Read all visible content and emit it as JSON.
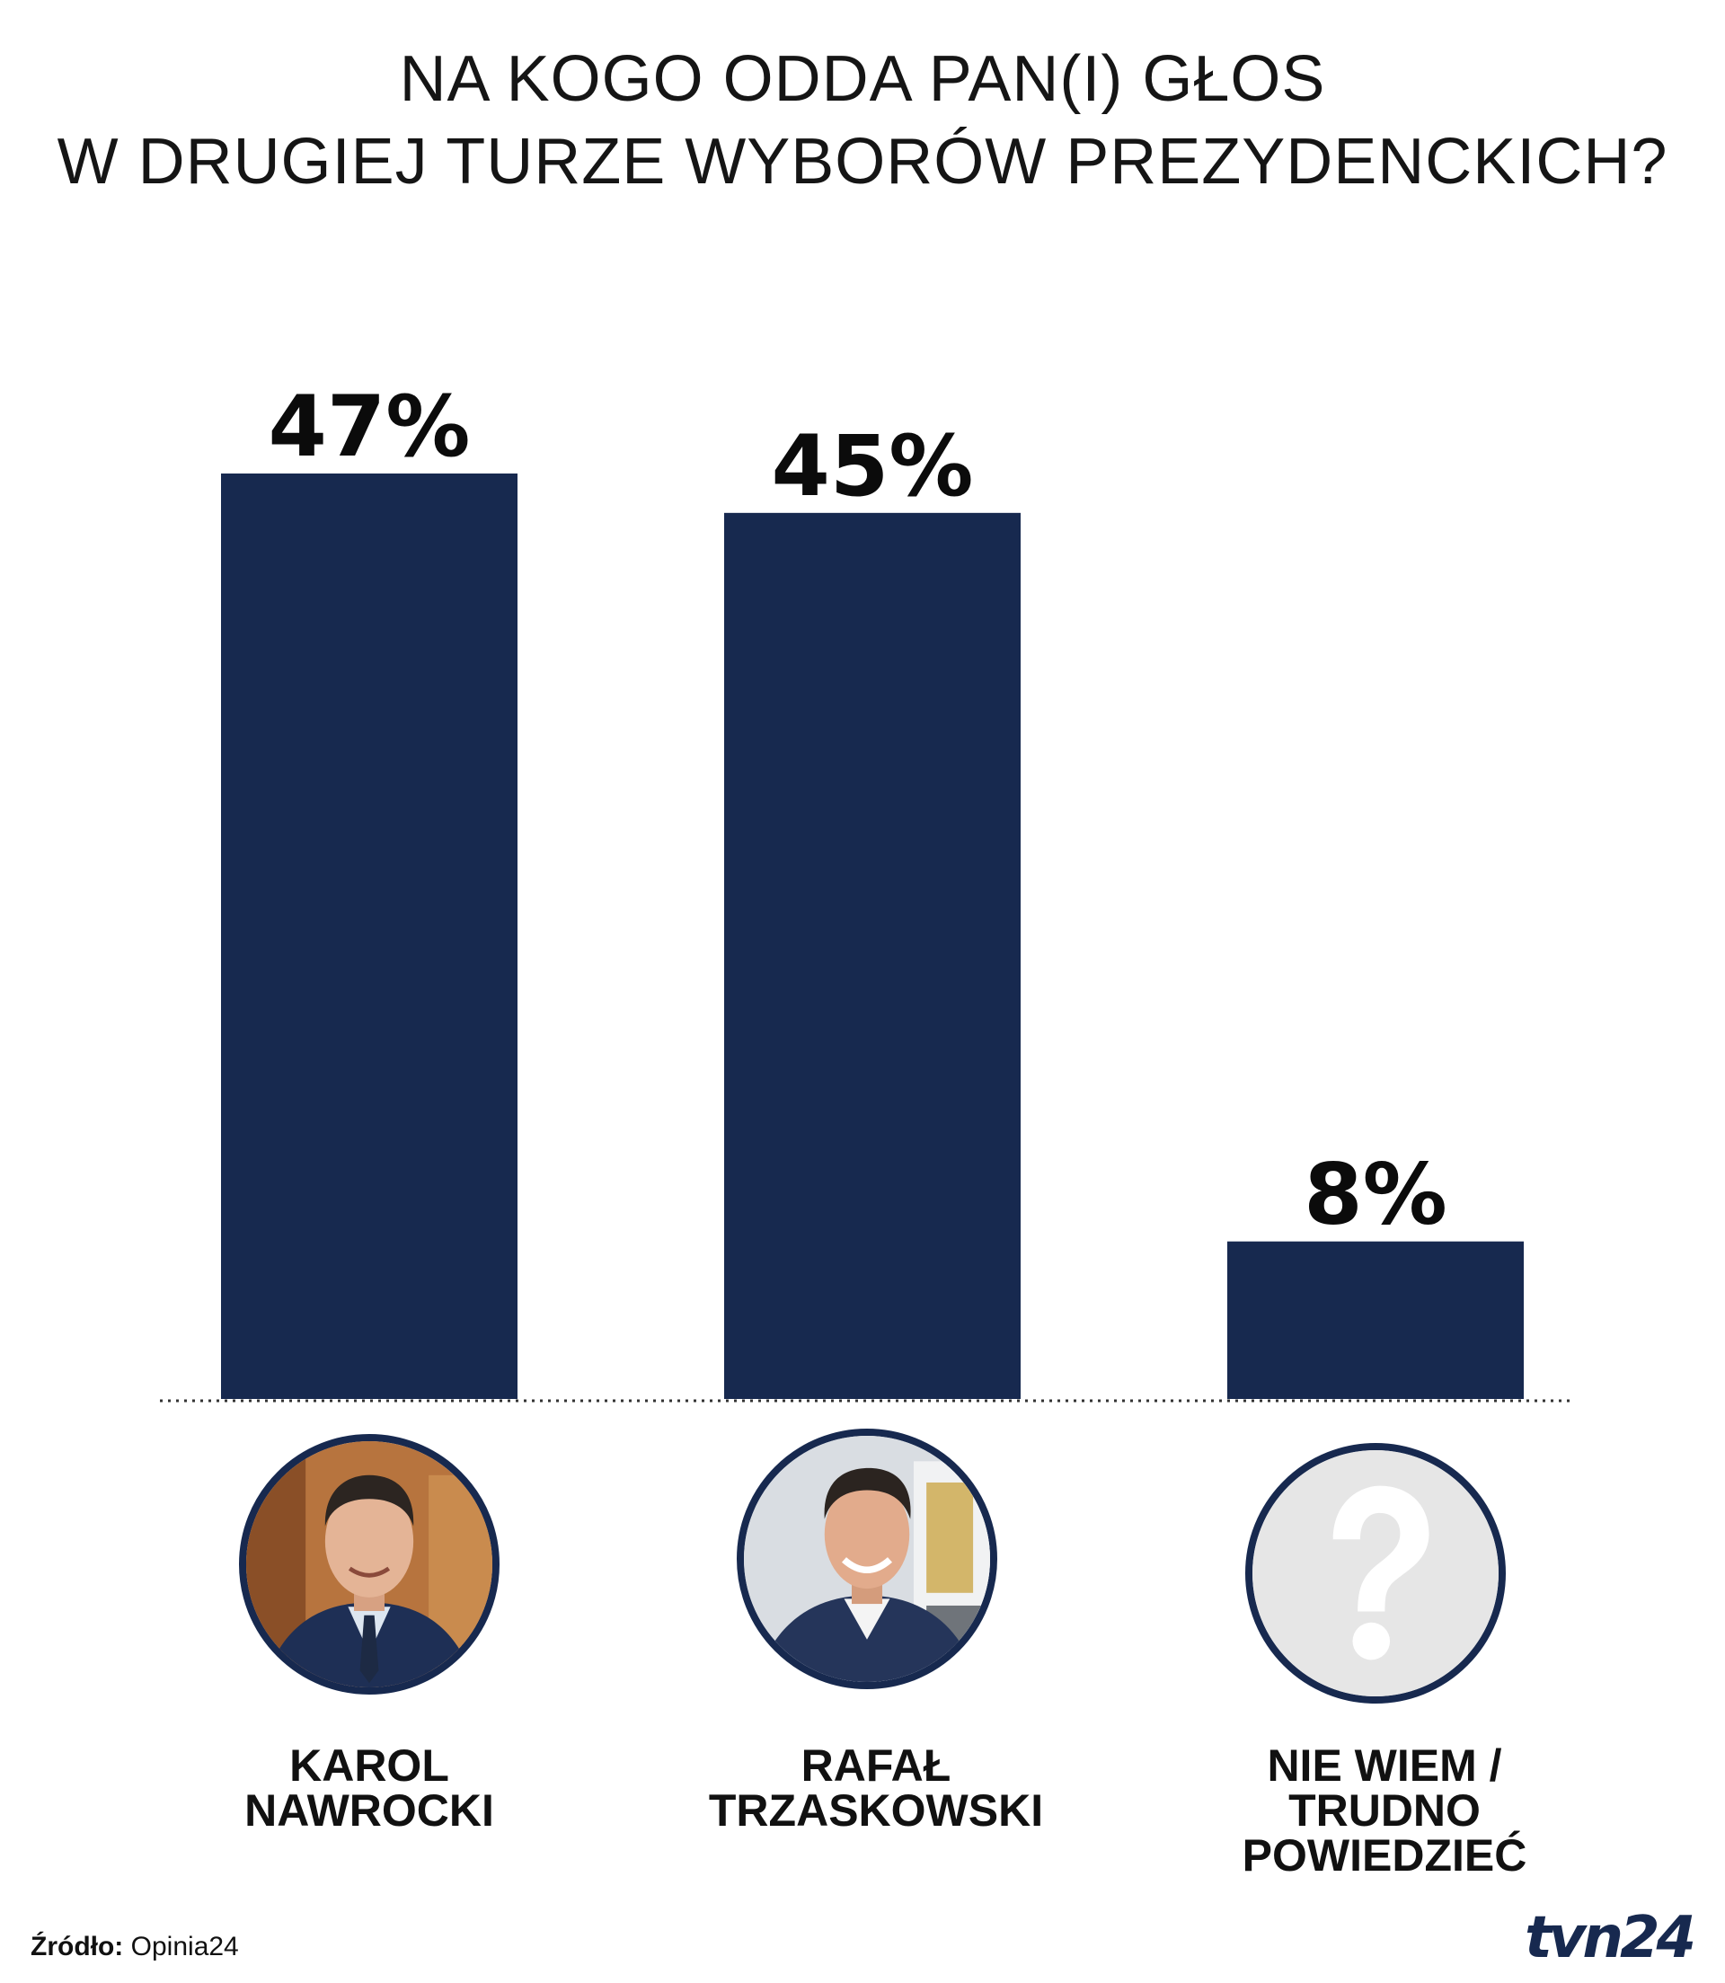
{
  "title_lines": [
    "NA KOGO ODDA PAN(I) GŁOS",
    "W DRUGIEJ TURZE WYBORÓW PREZYDENCKICH?"
  ],
  "colors": {
    "bar": "#17294f",
    "frame": "#17294f",
    "question_icon_bg": "#e6e6e6"
  },
  "chart_data": {
    "type": "bar",
    "title": "NA KOGO ODDA PAN(I) GŁOS W DRUGIEJ TURZE WYBORÓW PREZYDENCKICH?",
    "categories": [
      "KAROL NAWROCKI",
      "RAFAŁ TRZASKOWSKI",
      "NIE WIEM / TRUDNO POWIEDZIEĆ"
    ],
    "values": [
      47,
      45,
      8
    ],
    "data_labels": [
      "47%",
      "45%",
      "8%"
    ],
    "unit": "%",
    "ylim": [
      0,
      50
    ],
    "grid": false,
    "baseline_style": "dotted"
  },
  "categories": [
    {
      "label_lines": [
        "KAROL",
        "NAWROCKI"
      ],
      "icon": "person-photo-icon"
    },
    {
      "label_lines": [
        "RAFAŁ",
        "TRZASKOWSKI"
      ],
      "icon": "person-photo-icon"
    },
    {
      "label_lines": [
        "NIE WIEM /",
        "TRUDNO",
        "POWIEDZIEĆ"
      ],
      "icon": "question-mark-icon"
    }
  ],
  "source": {
    "label": "Źródło:",
    "value": "Opinia24"
  },
  "logo": "tvn24"
}
